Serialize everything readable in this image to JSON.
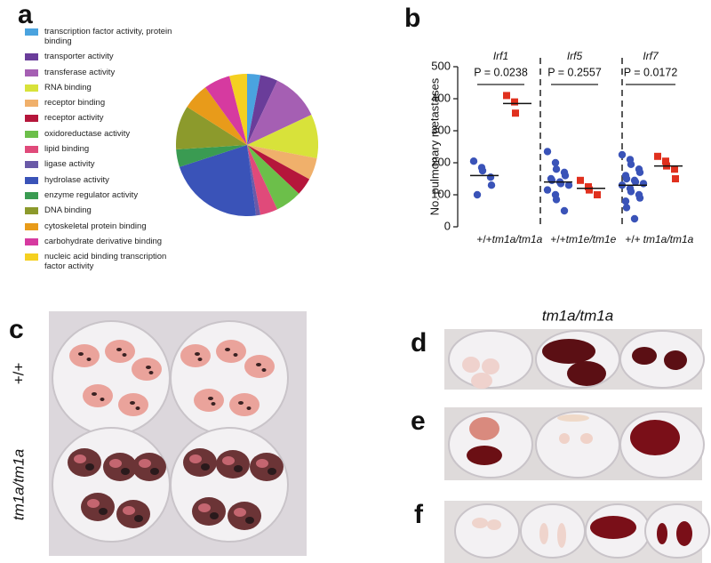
{
  "panel_labels": [
    "a",
    "b",
    "c",
    "d",
    "e",
    "f"
  ],
  "chart_data": [
    {
      "type": "pie",
      "categories": [
        "transcription factor activity, protein binding",
        "transporter activity",
        "transferase activity",
        "RNA binding",
        "receptor binding",
        "receptor activity",
        "oxidoreductase activity",
        "lipid binding",
        "ligase activity",
        "hydrolase activity",
        "enzyme regulator activity",
        "DNA binding",
        "cytoskeletal protein binding",
        "carbohydrate derivative binding",
        "nucleic acid binding transcription factor activity"
      ],
      "values": [
        3,
        4,
        11,
        10,
        5,
        4,
        6,
        4,
        1,
        22,
        4,
        10,
        6,
        6,
        4
      ],
      "colors": [
        "#4aa3df",
        "#6a3d9a",
        "#a55fb3",
        "#d8e23a",
        "#f0b06b",
        "#b5163b",
        "#6cbf4a",
        "#e04a7a",
        "#6a5aa8",
        "#3a53b8",
        "#3a9b52",
        "#8c9a2c",
        "#e89b1a",
        "#d63aa0",
        "#f5d020"
      ]
    },
    {
      "type": "dot",
      "ylabel": "No. pulmonary metastases",
      "ylim": [
        0,
        500
      ],
      "yticks": [
        0,
        100,
        200,
        300,
        400,
        500
      ],
      "groups": [
        {
          "name": "Irf1",
          "p_label": "P = 0.0238",
          "series": [
            {
              "name": "+/+",
              "color": "#3a53b8",
              "marker": "circle",
              "values": [
                205,
                185,
                175,
                155,
                130,
                100
              ],
              "mean": 160
            },
            {
              "name": "tm1a/tm1a",
              "color": "#e0301e",
              "marker": "square",
              "values": [
                410,
                390,
                355
              ],
              "mean": 385
            }
          ]
        },
        {
          "name": "Irf5",
          "p_label": "P = 0.2557",
          "series": [
            {
              "name": "+/+",
              "color": "#3a53b8",
              "marker": "circle",
              "values": [
                235,
                200,
                180,
                170,
                160,
                150,
                145,
                140,
                135,
                130,
                115,
                100,
                85,
                50
              ],
              "mean": 140
            },
            {
              "name": "tm1e/tm1e",
              "color": "#e0301e",
              "marker": "square",
              "values": [
                145,
                125,
                115,
                100
              ],
              "mean": 120
            }
          ]
        },
        {
          "name": "Irf7",
          "p_label": "P = 0.0172",
          "series": [
            {
              "name": "+/+",
              "color": "#3a53b8",
              "marker": "circle",
              "values": [
                225,
                210,
                195,
                180,
                170,
                160,
                150,
                145,
                140,
                135,
                130,
                120,
                110,
                100,
                90,
                80,
                60,
                25
              ],
              "mean": 130
            },
            {
              "name": "tm1a/tm1a",
              "color": "#e0301e",
              "marker": "square",
              "values": [
                220,
                205,
                190,
                180,
                150
              ],
              "mean": 190
            }
          ]
        }
      ]
    }
  ],
  "photos": {
    "c_row_labels": [
      "+/+",
      "tm1a/tm1a"
    ],
    "d_header": "tm1a/tm1a"
  }
}
